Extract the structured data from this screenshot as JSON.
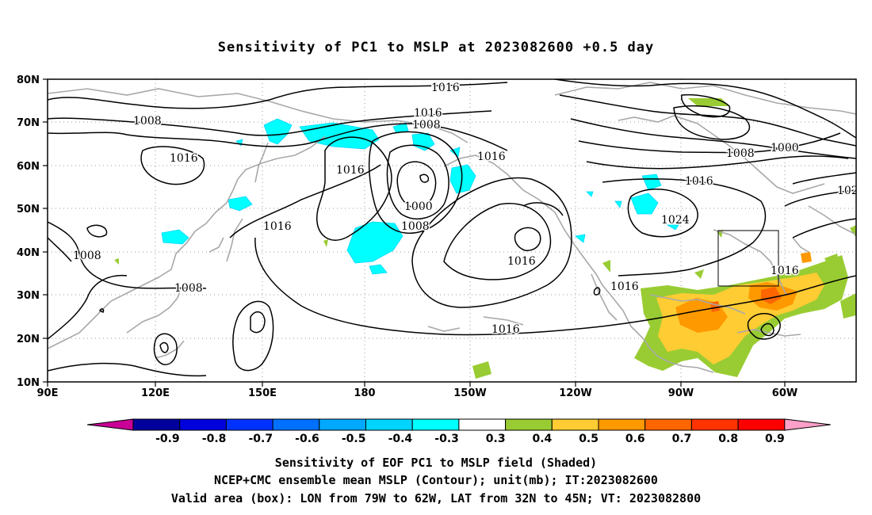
{
  "title": "Sensitivity of PC1 to MSLP at 2023082600 +0.5 day",
  "map": {
    "lat_labels": [
      "80N",
      "70N",
      "60N",
      "50N",
      "40N",
      "30N",
      "20N",
      "10N"
    ],
    "lon_labels": [
      "90E",
      "120E",
      "150E",
      "180",
      "150W",
      "120W",
      "90W",
      "60W"
    ],
    "contour_labels": [
      {
        "text": "1016",
        "name": "isobar-label-1016-north"
      },
      {
        "text": "1016",
        "name": "isobar-label-1016-bering"
      },
      {
        "text": "1008",
        "name": "isobar-label-1008-bering"
      },
      {
        "text": "1008",
        "name": "isobar-label-1008-siberia"
      },
      {
        "text": "1016",
        "name": "isobar-label-1016-siberia"
      },
      {
        "text": "1016",
        "name": "isobar-label-1016-kamchatka"
      },
      {
        "text": "1016",
        "name": "isobar-label-1016-alaska"
      },
      {
        "text": "1000",
        "name": "isobar-label-1000-low"
      },
      {
        "text": "1008",
        "name": "isobar-label-1008-low"
      },
      {
        "text": "1016",
        "name": "isobar-label-1016-japan"
      },
      {
        "text": "1008",
        "name": "isobar-label-1008-china"
      },
      {
        "text": "1008",
        "name": "isobar-label-1008-scs"
      },
      {
        "text": "1016",
        "name": "isobar-label-1016-npac-high"
      },
      {
        "text": "1016",
        "name": "isobar-label-1016-subtrop"
      },
      {
        "text": "1016",
        "name": "isobar-label-1016-mexico"
      },
      {
        "text": "1008",
        "name": "isobar-label-1008-canada"
      },
      {
        "text": "1000",
        "name": "isobar-label-1000-canada"
      },
      {
        "text": "1016",
        "name": "isobar-label-1016-canada"
      },
      {
        "text": "1024",
        "name": "isobar-label-1024-plains"
      },
      {
        "text": "1016",
        "name": "isobar-label-1016-atlantic"
      },
      {
        "text": "102",
        "name": "isobar-label-102-east"
      }
    ],
    "valid_box": {
      "lon_from": "79W",
      "lon_to": "62W",
      "lat_from": "32N",
      "lat_to": "45N"
    },
    "colors": {
      "coast": "#a8a8a8",
      "contour": "#000000",
      "grid": "#9a9a9a"
    }
  },
  "colorbar": {
    "labels": [
      "-0.9",
      "-0.8",
      "-0.7",
      "-0.6",
      "-0.5",
      "-0.4",
      "-0.3",
      "0.3",
      "0.4",
      "0.5",
      "0.6",
      "0.7",
      "0.8",
      "0.9"
    ],
    "colors": [
      "#00009c",
      "#0000dc",
      "#0032ff",
      "#0070ff",
      "#00a8ff",
      "#00d4ff",
      "#00ffff",
      "#ffffff",
      "#99cc33",
      "#ffcc33",
      "#ff9900",
      "#ff6600",
      "#ff3300",
      "#ff0000"
    ],
    "end_low_color": "#c80096",
    "end_high_color": "#ffa0c8"
  },
  "captions": {
    "line1": "Sensitivity of EOF PC1 to MSLP field (Shaded)",
    "line2": "NCEP+CMC ensemble mean MSLP (Contour); unit(mb); IT:2023082600",
    "line3": "Valid area (box): LON from 79W to 62W, LAT from 32N to 45N; VT: 2023082800"
  }
}
